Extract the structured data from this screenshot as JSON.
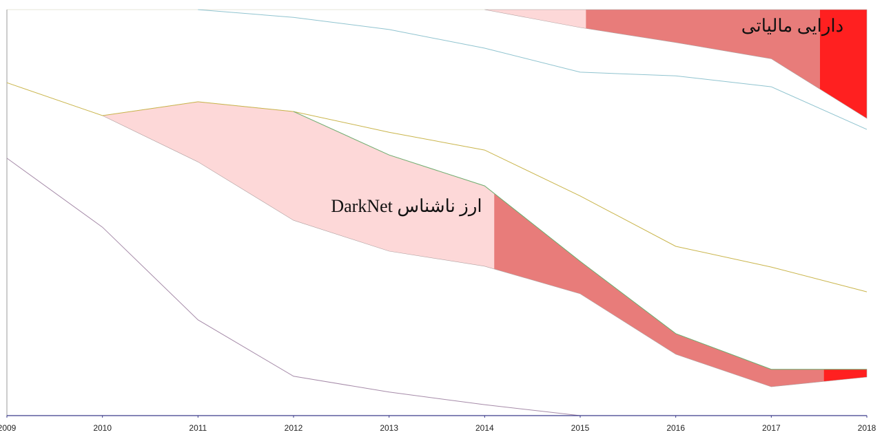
{
  "chart_data": {
    "type": "band",
    "x": [
      2009,
      2010,
      2011,
      2012,
      2013,
      2014,
      2015,
      2016,
      2017,
      2018
    ],
    "xlim": [
      2009,
      2018
    ],
    "xticks": [
      2009,
      2010,
      2011,
      2012,
      2013,
      2014,
      2015,
      2016,
      2017,
      2018
    ],
    "ylim": [
      0,
      100
    ],
    "lines": [
      {
        "color": "#8fc3cf",
        "values": [
          null,
          null,
          100,
          98.1,
          95.1,
          90.5,
          84.6,
          83.7,
          81.0,
          70.5
        ]
      },
      {
        "color": "#c9b44a",
        "values": [
          82.0,
          73.9,
          77.3,
          74.9,
          69.8,
          65.4,
          54.1,
          41.7,
          36.6,
          30.5
        ]
      },
      {
        "color": "#6fae6f",
        "values": [
          null,
          null,
          null,
          74.9,
          64.2,
          56.6,
          38.0,
          20.2,
          11.4,
          11.4
        ]
      },
      {
        "color": "#a58aa8",
        "values": [
          63.4,
          46.4,
          23.6,
          9.7,
          5.8,
          2.7,
          0,
          null,
          null,
          null
        ]
      }
    ],
    "bands": [
      {
        "label": "دارایی مالیاتی",
        "upper": [
          null,
          null,
          null,
          null,
          null,
          100,
          100,
          100,
          100,
          100
        ],
        "lower": [
          null,
          null,
          null,
          null,
          null,
          100,
          95.6,
          91.9,
          87.9,
          73.2
        ],
        "phases": [
          {
            "from": 2014,
            "to": 2015.06,
            "color": "#fdd8d8"
          },
          {
            "from": 2015.06,
            "to": 2017.51,
            "color": "#e87c7a"
          },
          {
            "from": 2017.51,
            "to": 2018,
            "color": "#ff2020"
          }
        ]
      },
      {
        "label": "ارز ناشناس DarkNet",
        "upper": [
          null,
          73.9,
          77.3,
          74.9,
          64.2,
          56.6,
          38.0,
          20.2,
          11.4,
          11.4
        ],
        "lower": [
          null,
          73.9,
          62.5,
          48.1,
          40.5,
          36.8,
          30.0,
          15.1,
          7.1,
          9.5
        ],
        "phases": [
          {
            "from": 2010,
            "to": 2014.1,
            "color": "#fdd8d8"
          },
          {
            "from": 2014.1,
            "to": 2017.55,
            "color": "#e87c7a"
          },
          {
            "from": 2017.55,
            "to": 2018,
            "color": "#ff2020"
          }
        ]
      }
    ]
  }
}
